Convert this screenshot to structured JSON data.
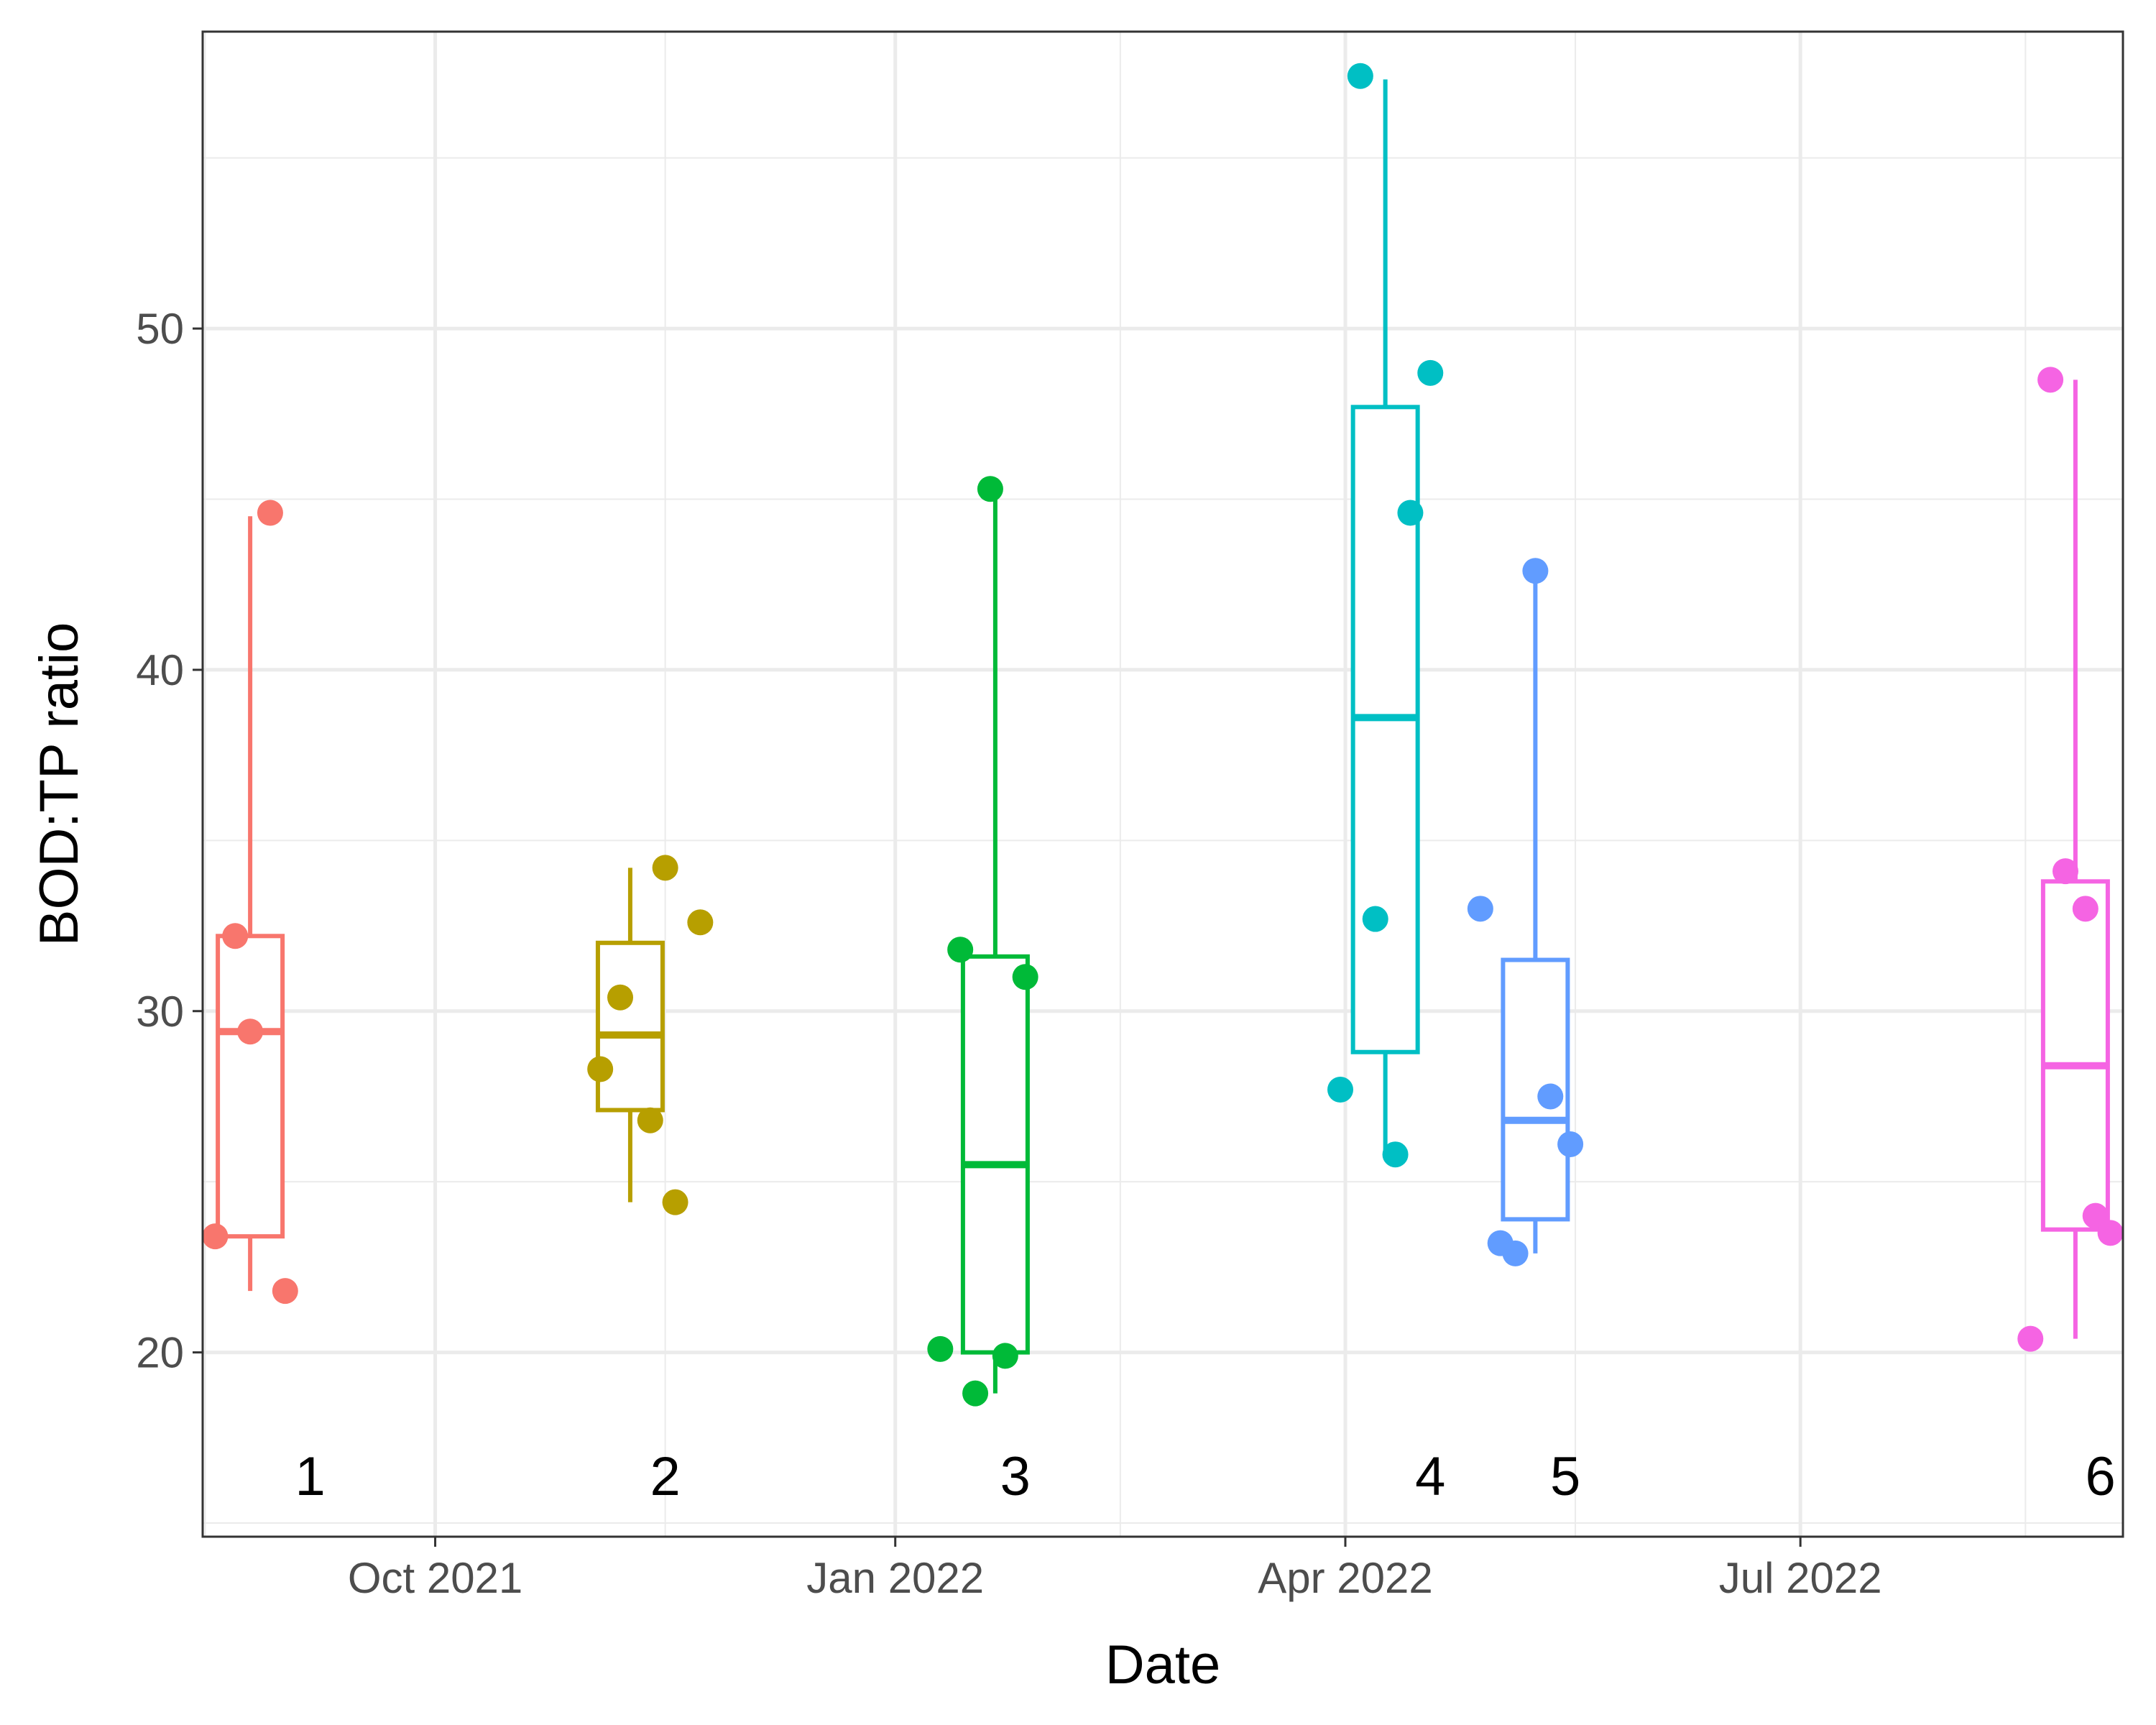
{
  "chart_data": {
    "type": "boxplot",
    "title": "",
    "xlabel": "Date",
    "ylabel": "BOD:TP ratio",
    "ylim": [
      14.6,
      58.7
    ],
    "xlim_days_from_2021_10_01": [
      -46.5,
      337.5
    ],
    "grid": true,
    "y_major_ticks": [
      20,
      30,
      40,
      50
    ],
    "y_minor_ticks": [
      15,
      25,
      35,
      45,
      55
    ],
    "x_ticks": [
      {
        "label": "Oct 2021",
        "day": 0
      },
      {
        "label": "Jan 2022",
        "day": 92
      },
      {
        "label": "Apr 2022",
        "day": 182
      },
      {
        "label": "Jul 2022",
        "day": 273
      }
    ],
    "x_minor_days": [
      -46,
      46,
      137,
      228,
      318
    ],
    "groups": [
      {
        "label": "1",
        "color": "#F8766D",
        "center_day": -37,
        "label_day": -25,
        "box": {
          "q1": 23.4,
          "median": 29.4,
          "q3": 32.2,
          "whisker_low": 21.8,
          "whisker_high": 44.5
        },
        "points": [
          [
            -44,
            23.4
          ],
          [
            -40,
            32.2
          ],
          [
            -37,
            29.4
          ],
          [
            -33,
            44.6
          ],
          [
            -30,
            21.8
          ]
        ]
      },
      {
        "label": "2",
        "color": "#B79F00",
        "center_day": 39,
        "label_day": 46,
        "box": {
          "q1": 27.1,
          "median": 29.3,
          "q3": 32.0,
          "whisker_low": 24.4,
          "whisker_high": 34.2
        },
        "points": [
          [
            33,
            28.3
          ],
          [
            37,
            30.4
          ],
          [
            43,
            26.8
          ],
          [
            46,
            34.2
          ],
          [
            48,
            24.4
          ],
          [
            53,
            32.6
          ]
        ]
      },
      {
        "label": "3",
        "color": "#00BA38",
        "center_day": 112,
        "label_day": 116,
        "box": {
          "q1": 20.0,
          "median": 25.5,
          "q3": 31.6,
          "whisker_low": 18.8,
          "whisker_high": 45.3
        },
        "points": [
          [
            101,
            20.1
          ],
          [
            105,
            31.8
          ],
          [
            108,
            18.8
          ],
          [
            111,
            45.3
          ],
          [
            114,
            19.9
          ],
          [
            118,
            31.0
          ]
        ]
      },
      {
        "label": "4",
        "color": "#00BFC4",
        "center_day": 190,
        "label_day": 199,
        "box": {
          "q1": 28.8,
          "median": 38.6,
          "q3": 47.7,
          "whisker_low": 25.8,
          "whisker_high": 57.3
        },
        "points": [
          [
            181,
            27.7
          ],
          [
            185,
            57.4
          ],
          [
            188,
            32.7
          ],
          [
            192,
            25.8
          ],
          [
            195,
            44.6
          ],
          [
            199,
            48.7
          ]
        ]
      },
      {
        "label": "5",
        "color": "#619CFF",
        "center_day": 220,
        "label_day": 226,
        "box": {
          "q1": 23.9,
          "median": 26.8,
          "q3": 31.5,
          "whisker_low": 22.9,
          "whisker_high": 42.9
        },
        "points": [
          [
            209,
            33.0
          ],
          [
            213,
            23.2
          ],
          [
            216,
            22.9
          ],
          [
            220,
            42.9
          ],
          [
            223,
            27.5
          ],
          [
            227,
            26.1
          ]
        ]
      },
      {
        "label": "6",
        "color": "#F564E3",
        "center_day": 328,
        "label_day": 333,
        "box": {
          "q1": 23.6,
          "median": 28.4,
          "q3": 33.8,
          "whisker_low": 20.4,
          "whisker_high": 48.5
        },
        "points": [
          [
            319,
            20.4
          ],
          [
            323,
            48.5
          ],
          [
            326,
            34.1
          ],
          [
            330,
            33.0
          ],
          [
            332,
            24.0
          ],
          [
            335,
            23.5
          ]
        ]
      }
    ]
  }
}
